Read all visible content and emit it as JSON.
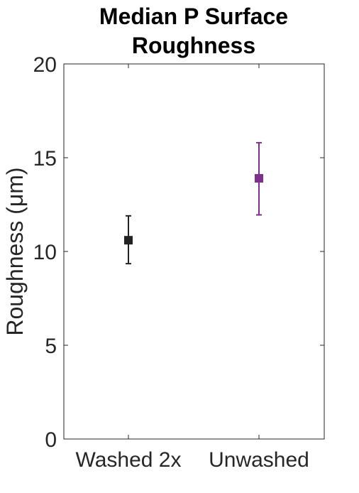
{
  "chart_data": {
    "type": "scatter",
    "title": [
      "Median P Surface",
      "Roughness"
    ],
    "xlabel": "",
    "ylabel": "Roughness (μm)",
    "ylim": [
      0,
      20
    ],
    "yticks": [
      "0",
      "5",
      "10",
      "15",
      "20"
    ],
    "categories": [
      "Washed 2x",
      "Unwashed"
    ],
    "series": [
      {
        "category": "Washed 2x",
        "value": 10.6,
        "error_low": 9.35,
        "error_high": 11.9,
        "color": "#222222"
      },
      {
        "category": "Unwashed",
        "value": 13.9,
        "error_low": 11.95,
        "error_high": 15.8,
        "color": "#7e2f8e"
      }
    ],
    "grid": false,
    "box": true
  }
}
